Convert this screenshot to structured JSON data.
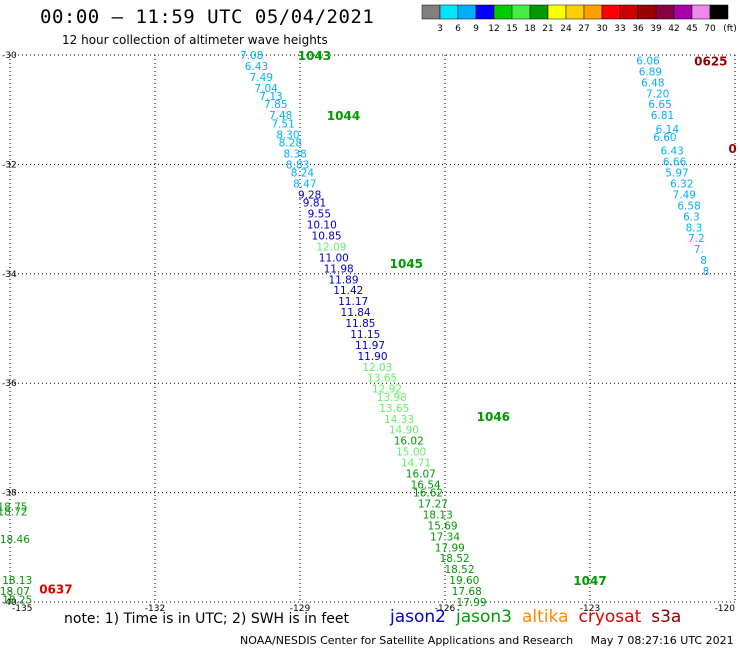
{
  "title": "00:00 – 11:59 UTC 05/04/2021",
  "subtitle": "12 hour collection of altimeter wave heights",
  "note": "note: 1) Time is in UTC; 2) SWH is in feet",
  "footer": {
    "credit": "NOAA/NESDIS Center for Satellite Applications and Research",
    "timestamp": "May  7 08:27:16 UTC 2021"
  },
  "legend": [
    {
      "name": "jason2",
      "color": "#0000cc"
    },
    {
      "name": "jason3",
      "color": "#009900"
    },
    {
      "name": "altika",
      "color": "#ff8800"
    },
    {
      "name": "cryosat",
      "color": "#dd0000"
    },
    {
      "name": "s3a",
      "color": "#880000"
    }
  ],
  "colorbar": {
    "labels": [
      "3",
      "6",
      "9",
      "12",
      "15",
      "18",
      "21",
      "24",
      "27",
      "30",
      "33",
      "36",
      "39",
      "42",
      "45",
      "70",
      "(ft)"
    ],
    "colors": [
      "#808080",
      "#00e5ff",
      "#00b0ff",
      "#0000ff",
      "#00cc00",
      "#44ee44",
      "#009900",
      "#ffff00",
      "#ffd000",
      "#ffa000",
      "#ff0000",
      "#cc0000",
      "#990000",
      "#880044",
      "#aa00aa",
      "#ee88ee",
      "#000000"
    ]
  },
  "axes": {
    "lat_labels": [
      "-30",
      "-32",
      "-34",
      "-36",
      "-38",
      "-40"
    ],
    "lon_labels": [
      "-135",
      "-132",
      "-129",
      "-126",
      "-123",
      "-120"
    ]
  },
  "chart_data": {
    "type": "scatter",
    "xlim": [
      -135,
      -120
    ],
    "ylim": [
      -40,
      -30
    ],
    "tracks": [
      {
        "name": "main-track",
        "labels": [
          {
            "time": "1043",
            "lat": -30.0,
            "lon": -128.7,
            "color": "#009900"
          },
          {
            "time": "1044",
            "lat": -31.1,
            "lon": -128.1,
            "color": "#009900"
          },
          {
            "time": "1045",
            "lat": -33.8,
            "lon": -126.8,
            "color": "#009900"
          },
          {
            "time": "1046",
            "lat": -36.6,
            "lon": -125.0,
            "color": "#009900"
          },
          {
            "time": "1047",
            "lat": -39.6,
            "lon": -123.0,
            "color": "#009900"
          }
        ],
        "points": [
          {
            "lat": -30.0,
            "lon": -130.0,
            "v": "7.08",
            "c": "#00b0ff"
          },
          {
            "lat": -30.2,
            "lon": -129.9,
            "v": "6.43",
            "c": "#00b0ff"
          },
          {
            "lat": -30.4,
            "lon": -129.8,
            "v": "7.49",
            "c": "#00b0ff"
          },
          {
            "lat": -30.6,
            "lon": -129.7,
            "v": "7.04",
            "c": "#00b0ff"
          },
          {
            "lat": -30.75,
            "lon": -129.6,
            "v": "7.13",
            "c": "#00b0ff"
          },
          {
            "lat": -30.9,
            "lon": -129.5,
            "v": "7.85",
            "c": "#00b0ff"
          },
          {
            "lat": -31.1,
            "lon": -129.4,
            "v": "7.48",
            "c": "#00b0ff"
          },
          {
            "lat": -31.25,
            "lon": -129.35,
            "v": "7.51",
            "c": "#00b0ff"
          },
          {
            "lat": -31.45,
            "lon": -129.25,
            "v": "8.30",
            "c": "#00b0ff"
          },
          {
            "lat": -31.6,
            "lon": -129.2,
            "v": "8.28",
            "c": "#00b0ff"
          },
          {
            "lat": -31.8,
            "lon": -129.1,
            "v": "8.38",
            "c": "#00b0ff"
          },
          {
            "lat": -32.0,
            "lon": -129.05,
            "v": "8.83",
            "c": "#00b0ff"
          },
          {
            "lat": -32.15,
            "lon": -128.95,
            "v": "8.24",
            "c": "#00b0ff"
          },
          {
            "lat": -32.35,
            "lon": -128.9,
            "v": "8.47",
            "c": "#00b0ff"
          },
          {
            "lat": -32.55,
            "lon": -128.8,
            "v": "9.28",
            "c": "#0000cc"
          },
          {
            "lat": -32.7,
            "lon": -128.7,
            "v": "9.81",
            "c": "#0000cc"
          },
          {
            "lat": -32.9,
            "lon": -128.6,
            "v": "9.55",
            "c": "#0000cc"
          },
          {
            "lat": -33.1,
            "lon": -128.55,
            "v": "10.10",
            "c": "#0000cc"
          },
          {
            "lat": -33.3,
            "lon": -128.45,
            "v": "10.85",
            "c": "#0000cc"
          },
          {
            "lat": -33.5,
            "lon": -128.35,
            "v": "12.09",
            "c": "#66ee66"
          },
          {
            "lat": -33.7,
            "lon": -128.3,
            "v": "11.00",
            "c": "#0000cc"
          },
          {
            "lat": -33.9,
            "lon": -128.2,
            "v": "11.98",
            "c": "#0000cc"
          },
          {
            "lat": -34.1,
            "lon": -128.1,
            "v": "11.89",
            "c": "#0000cc"
          },
          {
            "lat": -34.3,
            "lon": -128.0,
            "v": "11.42",
            "c": "#0000cc"
          },
          {
            "lat": -34.5,
            "lon": -127.9,
            "v": "11.17",
            "c": "#0000cc"
          },
          {
            "lat": -34.7,
            "lon": -127.85,
            "v": "11.84",
            "c": "#0000cc"
          },
          {
            "lat": -34.9,
            "lon": -127.75,
            "v": "11.85",
            "c": "#0000cc"
          },
          {
            "lat": -35.1,
            "lon": -127.65,
            "v": "11.15",
            "c": "#0000cc"
          },
          {
            "lat": -35.3,
            "lon": -127.55,
            "v": "11.97",
            "c": "#0000cc"
          },
          {
            "lat": -35.5,
            "lon": -127.5,
            "v": "11.90",
            "c": "#0000cc"
          },
          {
            "lat": -35.7,
            "lon": -127.4,
            "v": "12.03",
            "c": "#66ee66"
          },
          {
            "lat": -35.9,
            "lon": -127.3,
            "v": "13.65",
            "c": "#66ee66"
          },
          {
            "lat": -36.1,
            "lon": -127.2,
            "v": "12.92",
            "c": "#66ee66"
          },
          {
            "lat": -36.25,
            "lon": -127.1,
            "v": "13.98",
            "c": "#66ee66"
          },
          {
            "lat": -36.45,
            "lon": -127.05,
            "v": "13.65",
            "c": "#66ee66"
          },
          {
            "lat": -36.65,
            "lon": -126.95,
            "v": "14.33",
            "c": "#66ee66"
          },
          {
            "lat": -36.85,
            "lon": -126.85,
            "v": "14.90",
            "c": "#66ee66"
          },
          {
            "lat": -37.05,
            "lon": -126.75,
            "v": "16.02",
            "c": "#009900"
          },
          {
            "lat": -37.25,
            "lon": -126.7,
            "v": "15.00",
            "c": "#66ee66"
          },
          {
            "lat": -37.45,
            "lon": -126.6,
            "v": "14.71",
            "c": "#66ee66"
          },
          {
            "lat": -37.65,
            "lon": -126.5,
            "v": "16.07",
            "c": "#009900"
          },
          {
            "lat": -37.85,
            "lon": -126.4,
            "v": "16.54",
            "c": "#009900"
          },
          {
            "lat": -38.0,
            "lon": -126.35,
            "v": "16.62",
            "c": "#009900"
          },
          {
            "lat": -38.2,
            "lon": -126.25,
            "v": "17.27",
            "c": "#009900"
          },
          {
            "lat": -38.4,
            "lon": -126.15,
            "v": "18.13",
            "c": "#009900"
          },
          {
            "lat": -38.6,
            "lon": -126.05,
            "v": "15.69",
            "c": "#009900"
          },
          {
            "lat": -38.8,
            "lon": -126.0,
            "v": "17.34",
            "c": "#009900"
          },
          {
            "lat": -39.0,
            "lon": -125.9,
            "v": "17.99",
            "c": "#009900"
          },
          {
            "lat": -39.2,
            "lon": -125.8,
            "v": "18.52",
            "c": "#009900"
          },
          {
            "lat": -39.4,
            "lon": -125.7,
            "v": "18.52",
            "c": "#009900"
          },
          {
            "lat": -39.6,
            "lon": -125.6,
            "v": "19.60",
            "c": "#009900"
          },
          {
            "lat": -39.8,
            "lon": -125.55,
            "v": "17.68",
            "c": "#009900"
          },
          {
            "lat": -40.0,
            "lon": -125.45,
            "v": "17.99",
            "c": "#009900"
          }
        ]
      },
      {
        "name": "right-track",
        "labels": [
          {
            "time": "0625",
            "lat": -30.1,
            "lon": -120.5,
            "color": "#990000"
          },
          {
            "time": "0",
            "lat": -31.7,
            "lon": -120.05,
            "color": "#990000"
          }
        ],
        "points": [
          {
            "lat": -30.1,
            "lon": -121.8,
            "v": "6.06",
            "c": "#00b0ff"
          },
          {
            "lat": -30.3,
            "lon": -121.75,
            "v": "6.89",
            "c": "#00b0ff"
          },
          {
            "lat": -30.5,
            "lon": -121.7,
            "v": "6.48",
            "c": "#00b0ff"
          },
          {
            "lat": -30.7,
            "lon": -121.6,
            "v": "7.20",
            "c": "#00b0ff"
          },
          {
            "lat": -30.9,
            "lon": -121.55,
            "v": "6.65",
            "c": "#00b0ff"
          },
          {
            "lat": -31.1,
            "lon": -121.5,
            "v": "6.81",
            "c": "#00b0ff"
          },
          {
            "lat": -31.35,
            "lon": -121.4,
            "v": "6.14",
            "c": "#00b0ff"
          },
          {
            "lat": -31.5,
            "lon": -121.45,
            "v": "6.60",
            "c": "#00b0ff"
          },
          {
            "lat": -31.75,
            "lon": -121.3,
            "v": "6.43",
            "c": "#00b0ff"
          },
          {
            "lat": -31.95,
            "lon": -121.25,
            "v": "6.66",
            "c": "#00b0ff"
          },
          {
            "lat": -32.15,
            "lon": -121.2,
            "v": "5.97",
            "c": "#00b0ff"
          },
          {
            "lat": -32.35,
            "lon": -121.1,
            "v": "6.32",
            "c": "#00b0ff"
          },
          {
            "lat": -32.55,
            "lon": -121.05,
            "v": "7.49",
            "c": "#00b0ff"
          },
          {
            "lat": -32.75,
            "lon": -120.95,
            "v": "6.58",
            "c": "#00b0ff"
          },
          {
            "lat": -32.95,
            "lon": -120.9,
            "v": "6.3",
            "c": "#00b0ff"
          },
          {
            "lat": -33.15,
            "lon": -120.85,
            "v": "8.3",
            "c": "#00b0ff"
          },
          {
            "lat": -33.35,
            "lon": -120.8,
            "v": "7.2",
            "c": "#00b0ff"
          },
          {
            "lat": -33.55,
            "lon": -120.75,
            "v": "7.",
            "c": "#00b0ff"
          },
          {
            "lat": -33.75,
            "lon": -120.65,
            "v": "8",
            "c": "#00b0ff"
          },
          {
            "lat": -33.95,
            "lon": -120.6,
            "v": "8",
            "c": "#00b0ff"
          }
        ]
      },
      {
        "name": "left-track",
        "labels": [
          {
            "time": "0637",
            "lat": -39.75,
            "lon": -134.05,
            "color": "#dd0000"
          }
        ],
        "points": [
          {
            "lat": -38.25,
            "lon": -134.95,
            "v": "18.75",
            "c": "#009900"
          },
          {
            "lat": -38.35,
            "lon": -134.95,
            "v": "18.72",
            "c": "#009900"
          },
          {
            "lat": -38.85,
            "lon": -134.9,
            "v": "18.46",
            "c": "#009900"
          },
          {
            "lat": -39.6,
            "lon": -134.85,
            "v": "18.13",
            "c": "#009900"
          },
          {
            "lat": -39.8,
            "lon": -134.9,
            "v": "18.07",
            "c": "#009900"
          },
          {
            "lat": -39.95,
            "lon": -134.85,
            "v": "18.25",
            "c": "#009900"
          }
        ]
      }
    ]
  }
}
